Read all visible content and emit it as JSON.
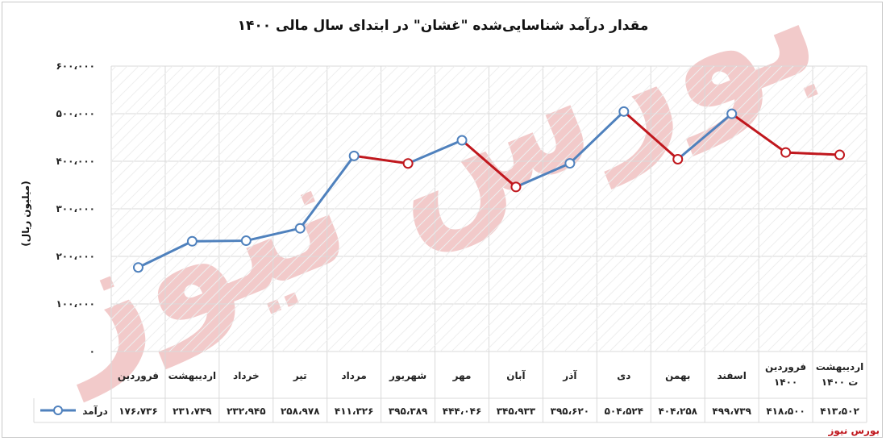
{
  "chart_data": {
    "type": "line",
    "title": "مقدار درآمد شناسایی‌شده \"غشان\" در ابتدای سال مالی ۱۴۰۰",
    "ylabel": "(میلیون ریال)",
    "xlabel": "",
    "ylim": [
      0,
      600000
    ],
    "yticks": [
      "۰",
      "۱۰۰،۰۰۰",
      "۲۰۰،۰۰۰",
      "۳۰۰،۰۰۰",
      "۴۰۰،۰۰۰",
      "۵۰۰،۰۰۰",
      "۶۰۰،۰۰۰"
    ],
    "categories": [
      [
        "فروردین"
      ],
      [
        "اردیبهشت"
      ],
      [
        "خرداد"
      ],
      [
        "تیر"
      ],
      [
        "مرداد"
      ],
      [
        "شهریور"
      ],
      [
        "مهر"
      ],
      [
        "آبان"
      ],
      [
        "آذر"
      ],
      [
        "دی"
      ],
      [
        "بهمن"
      ],
      [
        "اسفند"
      ],
      [
        "فروردین",
        "۱۴۰۰"
      ],
      [
        "اردیبهشت",
        "ت ۱۴۰۰"
      ]
    ],
    "series": [
      {
        "name": "درآمد",
        "values": [
          176736,
          231749,
          232945,
          258978,
          411326,
          395389,
          444046,
          345933,
          395620,
          504524,
          404258,
          499739,
          418500,
          413502
        ],
        "value_labels": [
          "۱۷۶،۷۳۶",
          "۲۳۱،۷۴۹",
          "۲۳۲،۹۴۵",
          "۲۵۸،۹۷۸",
          "۴۱۱،۳۲۶",
          "۳۹۵،۳۸۹",
          "۴۴۴،۰۴۶",
          "۳۴۵،۹۳۳",
          "۳۹۵،۶۲۰",
          "۵۰۴،۵۲۴",
          "۴۰۴،۲۵۸",
          "۴۹۹،۷۳۹",
          "۴۱۸،۵۰۰",
          "۴۱۳،۵۰۲"
        ],
        "color": "#4f81bd"
      }
    ],
    "down_color": "#c0171d",
    "grid": true,
    "legend": "data-table-left",
    "data_table": true
  },
  "watermark_text": "بورس نیوز",
  "brand_label": "بورس نیوز",
  "colors": {
    "line_up": "#4f81bd",
    "line_down": "#c0171d",
    "grid": "#d9d9d9",
    "watermark": "#e8a0a0"
  }
}
